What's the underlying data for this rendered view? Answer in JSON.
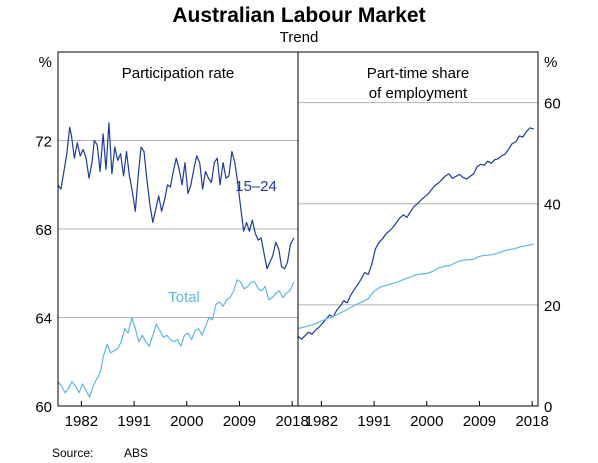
{
  "title": "Australian Labour Market",
  "subtitle": "Trend",
  "source": {
    "label": "Source:",
    "value": "ABS"
  },
  "colors": {
    "dark": "#1f3b9a",
    "light": "#5fb7e0",
    "grid": "#b3b3b3"
  },
  "chart_data": [
    {
      "type": "line",
      "title": "Participation rate",
      "ylabel": "%",
      "ylim": [
        60,
        76
      ],
      "yticks": [
        60,
        64,
        68,
        72
      ],
      "xlim": [
        1978,
        2019
      ],
      "xticks": [
        1982,
        1991,
        2000,
        2009,
        2018
      ],
      "grid": true,
      "series": [
        {
          "name": "15–24",
          "color_key": "dark",
          "x": [
            1978,
            1978.5,
            1979,
            1979.5,
            1980,
            1980.3,
            1980.8,
            1981.3,
            1981.8,
            1982.3,
            1982.8,
            1983.3,
            1983.8,
            1984.2,
            1984.7,
            1985.2,
            1985.7,
            1986.2,
            1986.7,
            1987.2,
            1987.7,
            1988.2,
            1988.7,
            1989.2,
            1989.7,
            1990.2,
            1990.7,
            1991.2,
            1991.7,
            1992.2,
            1992.7,
            1993.2,
            1993.7,
            1994.2,
            1994.7,
            1995.2,
            1995.7,
            1996.2,
            1996.7,
            1997.2,
            1997.7,
            1998.2,
            1998.7,
            1999.2,
            1999.7,
            2000.2,
            2000.7,
            2001.2,
            2001.7,
            2002.2,
            2002.7,
            2003.2,
            2003.7,
            2004.2,
            2004.7,
            2005.2,
            2005.7,
            2006.2,
            2006.7,
            2007.2,
            2007.7,
            2008.2,
            2008.7,
            2009.2,
            2009.7,
            2010.2,
            2010.7,
            2011.2,
            2011.7,
            2012.2,
            2012.7,
            2013.2,
            2013.7,
            2014.2,
            2014.7,
            2015.2,
            2015.7,
            2016.2,
            2016.7,
            2017.2,
            2017.7,
            2018.3
          ],
          "values": [
            70.0,
            69.8,
            70.6,
            71.4,
            72.6,
            72.2,
            71.2,
            71.9,
            71.3,
            71.6,
            71.2,
            70.3,
            71.0,
            72.0,
            71.8,
            70.6,
            72.3,
            70.7,
            72.8,
            70.5,
            71.7,
            71.1,
            71.4,
            70.4,
            71.5,
            70.4,
            69.7,
            68.8,
            70.4,
            71.7,
            71.5,
            70.2,
            69.1,
            68.3,
            68.9,
            69.5,
            68.8,
            69.3,
            70.0,
            69.9,
            70.6,
            71.2,
            70.7,
            70.0,
            71.0,
            69.6,
            70.0,
            70.7,
            71.3,
            71.0,
            69.8,
            70.6,
            70.3,
            70.1,
            71.0,
            71.2,
            70.0,
            71.0,
            70.3,
            70.4,
            71.5,
            71.0,
            70.1,
            69.0,
            67.9,
            68.3,
            67.9,
            68.4,
            67.8,
            67.5,
            67.6,
            66.9,
            66.2,
            66.5,
            66.8,
            67.4,
            67.1,
            66.3,
            66.2,
            66.5,
            67.3,
            67.6
          ]
        },
        {
          "name": "Total",
          "color_key": "light",
          "x": [
            1978,
            1978.6,
            1979.2,
            1979.8,
            1980.4,
            1981.0,
            1981.6,
            1982.2,
            1982.8,
            1983.4,
            1984.0,
            1984.6,
            1985.2,
            1985.8,
            1986.4,
            1987.0,
            1987.6,
            1988.2,
            1988.8,
            1989.4,
            1990.0,
            1990.6,
            1991.2,
            1991.8,
            1992.4,
            1993.0,
            1993.6,
            1994.2,
            1994.8,
            1995.4,
            1996.0,
            1996.6,
            1997.2,
            1997.8,
            1998.4,
            1999.0,
            1999.6,
            2000.2,
            2000.8,
            2001.4,
            2002.0,
            2002.6,
            2003.2,
            2003.8,
            2004.4,
            2005.0,
            2005.6,
            2006.2,
            2006.8,
            2007.4,
            2008.0,
            2008.6,
            2009.2,
            2009.8,
            2010.4,
            2011.0,
            2011.6,
            2012.2,
            2012.8,
            2013.4,
            2014.0,
            2014.6,
            2015.2,
            2015.8,
            2016.4,
            2017.0,
            2017.6,
            2018.3
          ],
          "values": [
            61.1,
            60.9,
            60.6,
            60.8,
            61.1,
            60.9,
            60.6,
            61.0,
            60.7,
            60.4,
            60.9,
            61.2,
            61.5,
            62.3,
            62.8,
            62.4,
            62.5,
            62.6,
            62.9,
            63.5,
            63.3,
            64.0,
            63.5,
            62.9,
            63.2,
            62.9,
            62.7,
            63.2,
            63.7,
            63.4,
            63.1,
            63.2,
            63.0,
            62.9,
            63.0,
            62.7,
            63.2,
            63.3,
            63.0,
            63.4,
            63.5,
            63.2,
            63.6,
            64.0,
            63.9,
            64.6,
            64.7,
            64.5,
            64.8,
            64.9,
            65.2,
            65.7,
            65.6,
            65.3,
            65.4,
            65.6,
            65.6,
            65.3,
            65.2,
            65.4,
            64.8,
            64.9,
            65.1,
            65.2,
            64.9,
            65.1,
            65.2,
            65.6
          ]
        }
      ]
    },
    {
      "type": "line",
      "title": "Part-time share\nof employment",
      "ylabel": "%",
      "ylim": [
        0,
        70
      ],
      "yticks": [
        0,
        20,
        40,
        60
      ],
      "xlim": [
        1978,
        2019
      ],
      "xticks": [
        1982,
        1991,
        2000,
        2009,
        2018
      ],
      "grid": true,
      "series": [
        {
          "color_key": "dark",
          "x": [
            1978,
            1978.6,
            1979.2,
            1979.8,
            1980.4,
            1981.0,
            1981.6,
            1982.2,
            1982.8,
            1983.4,
            1984.0,
            1984.6,
            1985.2,
            1985.8,
            1986.4,
            1987.0,
            1987.6,
            1988.2,
            1988.8,
            1989.4,
            1990.0,
            1990.6,
            1991.2,
            1991.8,
            1992.4,
            1993.0,
            1993.6,
            1994.2,
            1994.8,
            1995.4,
            1996.0,
            1996.6,
            1997.2,
            1997.8,
            1998.4,
            1999.0,
            1999.6,
            2000.2,
            2000.8,
            2001.4,
            2002.0,
            2002.6,
            2003.2,
            2003.8,
            2004.4,
            2005.0,
            2005.6,
            2006.2,
            2006.8,
            2007.4,
            2008.0,
            2008.6,
            2009.2,
            2009.8,
            2010.4,
            2011.0,
            2011.6,
            2012.2,
            2012.8,
            2013.4,
            2014.0,
            2014.6,
            2015.2,
            2015.8,
            2016.4,
            2017.0,
            2017.6,
            2018.3
          ],
          "values": [
            13.8,
            13.2,
            13.9,
            14.6,
            14.2,
            15.0,
            15.6,
            16.4,
            17.2,
            18.0,
            17.6,
            18.9,
            19.7,
            20.8,
            20.4,
            21.9,
            23.0,
            24.0,
            25.1,
            26.4,
            26.0,
            28.0,
            31.0,
            32.3,
            33.0,
            34.0,
            34.6,
            35.3,
            36.2,
            37.2,
            37.8,
            37.3,
            38.4,
            39.4,
            40.0,
            40.7,
            41.3,
            41.9,
            42.8,
            43.6,
            44.1,
            44.8,
            45.5,
            45.9,
            45.0,
            45.4,
            45.8,
            45.2,
            44.9,
            45.4,
            45.9,
            47.3,
            47.8,
            47.6,
            48.4,
            48.0,
            48.7,
            48.9,
            49.5,
            49.8,
            50.8,
            51.9,
            52.2,
            53.4,
            53.2,
            54.2,
            55.0,
            54.8
          ]
        },
        {
          "color_key": "light",
          "x": [
            1978,
            1979,
            1980,
            1981,
            1982,
            1983,
            1984,
            1985,
            1986,
            1987,
            1988,
            1989,
            1990,
            1991,
            1992,
            1993,
            1994,
            1995,
            1996,
            1997,
            1998,
            1999,
            2000,
            2001,
            2002,
            2003,
            2004,
            2005,
            2006,
            2007,
            2008,
            2009,
            2010,
            2011,
            2012,
            2013,
            2014,
            2015,
            2016,
            2017,
            2018.3
          ],
          "values": [
            15.3,
            15.6,
            15.9,
            16.3,
            16.8,
            17.3,
            17.7,
            18.3,
            18.8,
            19.5,
            20.1,
            20.6,
            21.2,
            22.7,
            23.5,
            23.8,
            24.2,
            24.5,
            25.0,
            25.4,
            25.9,
            26.1,
            26.2,
            26.6,
            27.3,
            27.6,
            27.8,
            28.4,
            28.8,
            28.9,
            29.0,
            29.6,
            29.8,
            29.9,
            30.2,
            30.6,
            30.9,
            31.1,
            31.5,
            31.7,
            32.0
          ]
        }
      ]
    }
  ]
}
